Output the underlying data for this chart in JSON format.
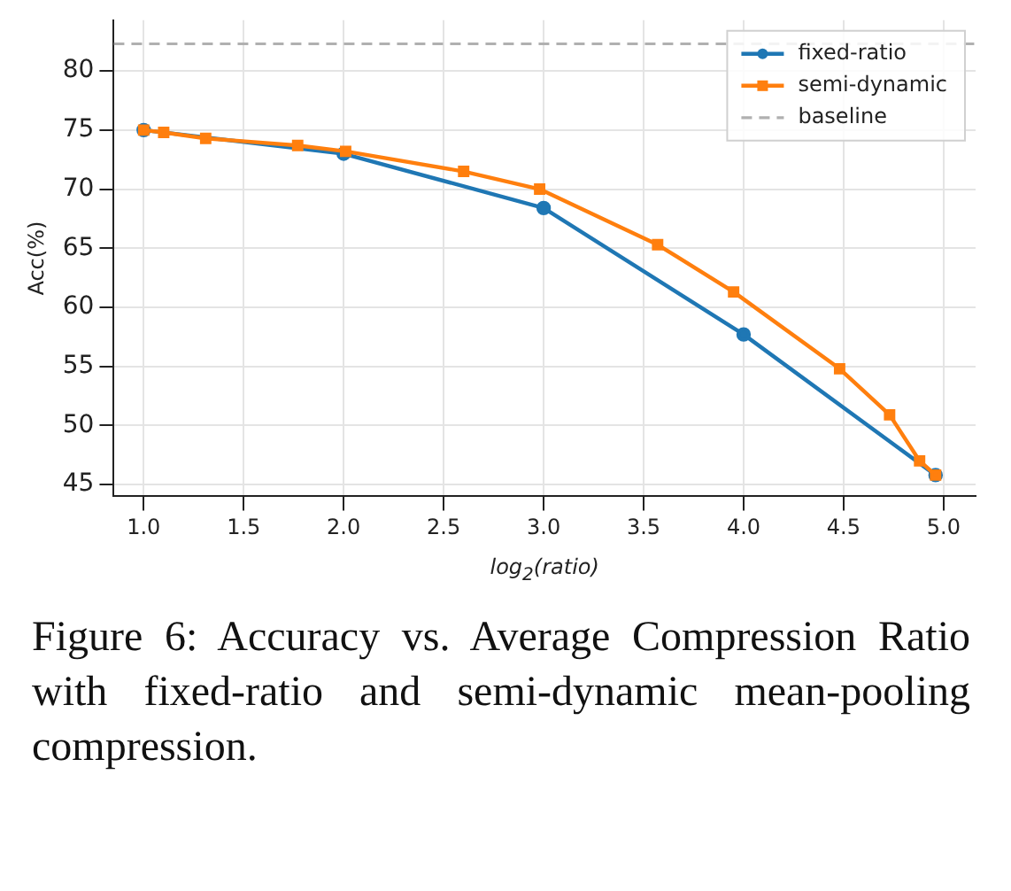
{
  "chart_data": {
    "type": "line",
    "xlabel": "log$_{2}$(ratio)",
    "ylabel": "Acc(%)",
    "xlim": [
      0.85,
      5.16
    ],
    "xticks": [
      {
        "value": 1,
        "label": "1.0"
      },
      {
        "value": 1.5,
        "label": "1.5"
      },
      {
        "value": 2,
        "label": "2.0"
      },
      {
        "value": 2.5,
        "label": "2.5"
      },
      {
        "value": 3,
        "label": "3.0"
      },
      {
        "value": 3.5,
        "label": "3.5"
      },
      {
        "value": 4,
        "label": "4.0"
      },
      {
        "value": 4.5,
        "label": "4.5"
      },
      {
        "value": 5,
        "label": "5.0"
      }
    ],
    "ylim": [
      44.0,
      84.3
    ],
    "yticks": [
      45,
      50,
      55,
      60,
      65,
      70,
      75,
      80
    ],
    "series": [
      {
        "name": "fixed-ratio",
        "color": "#1f77b4",
        "marker": "circle",
        "x": [
          1.0,
          2.0,
          3.0,
          4.0,
          4.96
        ],
        "values": [
          75.0,
          73.0,
          68.4,
          57.7,
          45.8
        ]
      },
      {
        "name": "semi-dynamic",
        "color": "#ff7f0e",
        "marker": "square",
        "x": [
          1.0,
          1.1,
          1.31,
          1.77,
          2.01,
          2.6,
          2.98,
          3.57,
          3.95,
          4.48,
          4.73,
          4.88,
          4.96
        ],
        "values": [
          75.0,
          74.8,
          74.3,
          73.7,
          73.2,
          71.5,
          70.0,
          65.3,
          61.3,
          54.8,
          50.9,
          47.0,
          45.8
        ]
      }
    ],
    "ref_lines": [
      {
        "axis": "y",
        "value": 82.3,
        "label": "baseline",
        "color": "#b0b0b0",
        "line_style": "dashed"
      }
    ],
    "grid": true,
    "legend": "top right",
    "annotations": [
      "Figure 6: Accuracy vs. Average Compression Ratio with fixed-ratio and semi-dynamic mean-pooling compression."
    ]
  }
}
